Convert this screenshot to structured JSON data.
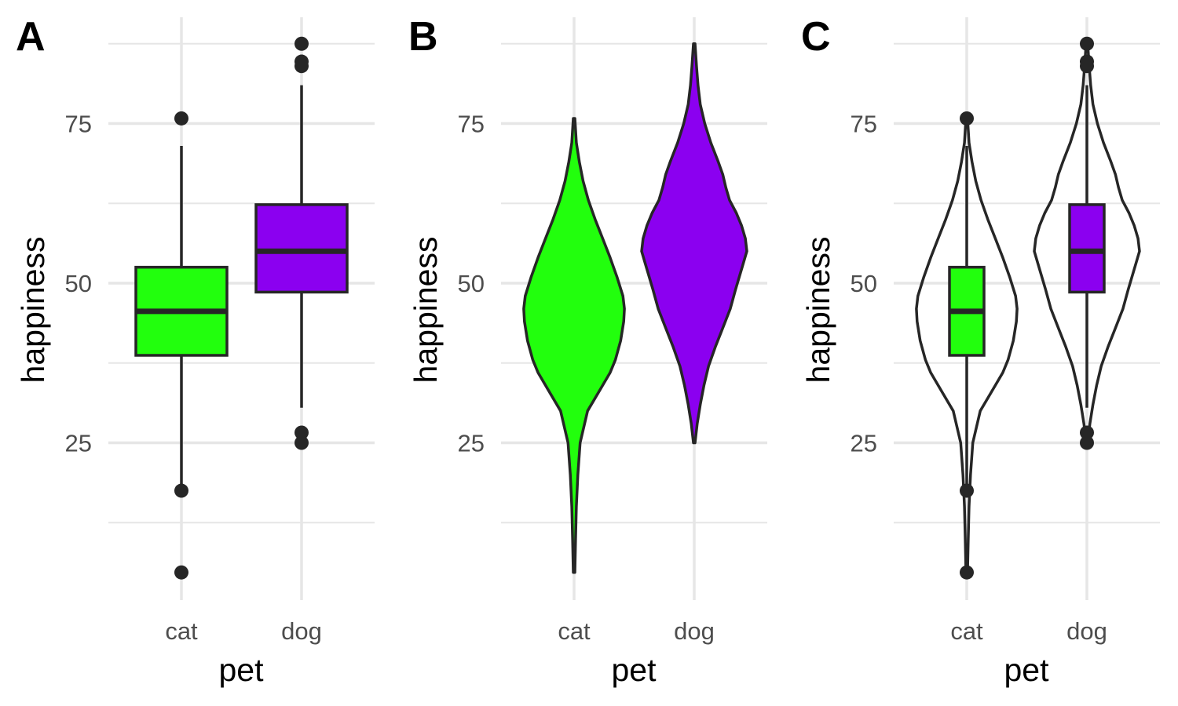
{
  "chart_data": [
    {
      "panel_label": "A",
      "type": "boxplot",
      "xlabel": "pet",
      "ylabel": "happiness",
      "categories": [
        "cat",
        "dog"
      ],
      "yticks": [
        25,
        50,
        75
      ],
      "ylim": [
        3,
        88
      ],
      "grid": true,
      "colors": [
        "#22ff0d",
        "#8b00f0"
      ],
      "boxes": [
        {
          "category": "cat",
          "q1": 38.7,
          "median": 45.6,
          "q3": 52.5,
          "whisker_low": 17.5,
          "whisker_high": 71.5,
          "outliers": [
            75.8,
            17.5,
            4.7
          ]
        },
        {
          "category": "dog",
          "q1": 48.6,
          "median": 55.0,
          "q3": 62.3,
          "whisker_low": 30.5,
          "whisker_high": 81.0,
          "outliers": [
            87.5,
            84.7,
            84.0,
            26.6,
            25.0
          ]
        }
      ]
    },
    {
      "panel_label": "B",
      "type": "violin",
      "xlabel": "pet",
      "ylabel": "happiness",
      "categories": [
        "cat",
        "dog"
      ],
      "yticks": [
        25,
        50,
        75
      ],
      "ylim": [
        3,
        88
      ],
      "grid": true,
      "colors": [
        "#22ff0d",
        "#8b00f0"
      ],
      "violins": [
        {
          "category": "cat",
          "y": [
            4.7,
            10,
            15,
            20,
            25,
            30,
            33,
            36,
            38,
            41,
            44,
            46,
            48,
            51,
            54,
            57,
            60,
            63,
            66,
            69,
            72,
            75.8
          ],
          "density": [
            0.01,
            0.02,
            0.03,
            0.05,
            0.08,
            0.18,
            0.33,
            0.48,
            0.55,
            0.62,
            0.66,
            0.67,
            0.65,
            0.57,
            0.48,
            0.38,
            0.28,
            0.19,
            0.12,
            0.07,
            0.03,
            0.01
          ]
        },
        {
          "category": "dog",
          "y": [
            25.0,
            28,
            31,
            34,
            37,
            40,
            43,
            46,
            49,
            51,
            53,
            55,
            57,
            59,
            61,
            63,
            65,
            67,
            69,
            72,
            75,
            78,
            81,
            84,
            87.5
          ],
          "density": [
            0.01,
            0.04,
            0.08,
            0.13,
            0.19,
            0.28,
            0.38,
            0.48,
            0.55,
            0.6,
            0.65,
            0.7,
            0.68,
            0.63,
            0.56,
            0.47,
            0.42,
            0.38,
            0.32,
            0.22,
            0.14,
            0.08,
            0.05,
            0.03,
            0.01
          ]
        }
      ]
    },
    {
      "panel_label": "C",
      "type": "violin+boxplot",
      "xlabel": "pet",
      "ylabel": "happiness",
      "categories": [
        "cat",
        "dog"
      ],
      "yticks": [
        25,
        50,
        75
      ],
      "ylim": [
        3,
        88
      ],
      "grid": true,
      "colors": [
        "#22ff0d",
        "#8b00f0"
      ],
      "note_series": "same violin and box data as panels A and B; violins unfilled, narrow boxes"
    }
  ]
}
